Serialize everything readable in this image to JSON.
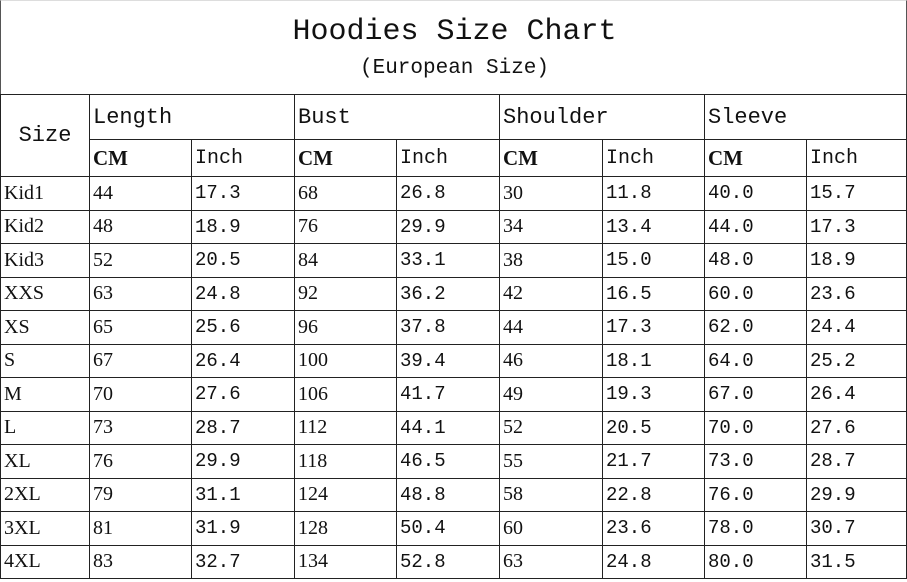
{
  "title": "Hoodies Size Chart",
  "subtitle": "(European Size)",
  "size_header": "Size",
  "groups": [
    "Length",
    "Bust",
    "Shoulder",
    "Sleeve"
  ],
  "units": [
    "CM",
    "Inch"
  ],
  "rows": [
    [
      "Kid1",
      "44",
      "17.3",
      "68",
      "26.8",
      "30",
      "11.8",
      "40.0",
      "15.7"
    ],
    [
      "Kid2",
      "48",
      "18.9",
      "76",
      "29.9",
      "34",
      "13.4",
      "44.0",
      "17.3"
    ],
    [
      "Kid3",
      "52",
      "20.5",
      "84",
      "33.1",
      "38",
      "15.0",
      "48.0",
      "18.9"
    ],
    [
      "XXS",
      "63",
      "24.8",
      "92",
      "36.2",
      "42",
      "16.5",
      "60.0",
      "23.6"
    ],
    [
      "XS",
      "65",
      "25.6",
      "96",
      "37.8",
      "44",
      "17.3",
      "62.0",
      "24.4"
    ],
    [
      "S",
      "67",
      "26.4",
      "100",
      "39.4",
      "46",
      "18.1",
      "64.0",
      "25.2"
    ],
    [
      "M",
      "70",
      "27.6",
      "106",
      "41.7",
      "49",
      "19.3",
      "67.0",
      "26.4"
    ],
    [
      "L",
      "73",
      "28.7",
      "112",
      "44.1",
      "52",
      "20.5",
      "70.0",
      "27.6"
    ],
    [
      "XL",
      "76",
      "29.9",
      "118",
      "46.5",
      "55",
      "21.7",
      "73.0",
      "28.7"
    ],
    [
      "2XL",
      "79",
      "31.1",
      "124",
      "48.8",
      "58",
      "22.8",
      "76.0",
      "29.9"
    ],
    [
      "3XL",
      "81",
      "31.9",
      "128",
      "50.4",
      "60",
      "23.6",
      "78.0",
      "30.7"
    ],
    [
      "4XL",
      "83",
      "32.7",
      "134",
      "52.8",
      "63",
      "24.8",
      "80.0",
      "31.5"
    ]
  ]
}
